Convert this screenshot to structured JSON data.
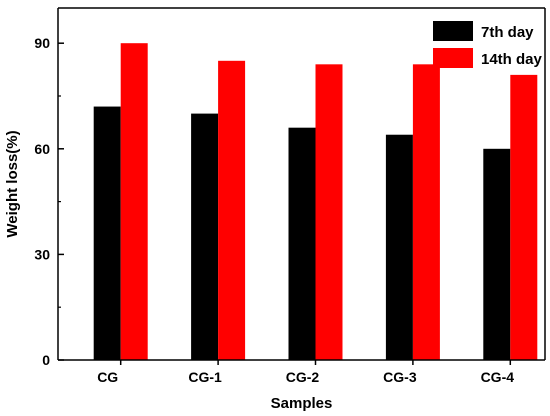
{
  "chart_data": {
    "type": "bar",
    "title": "",
    "xlabel": "Samples",
    "ylabel": "Weight loss(%)",
    "categories": [
      "CG",
      "CG-1",
      "CG-2",
      "CG-3",
      "CG-4"
    ],
    "series": [
      {
        "name": "7th day",
        "values": [
          72,
          70,
          66,
          64,
          60
        ],
        "color": "#000000"
      },
      {
        "name": "14th day",
        "values": [
          90,
          85,
          84,
          84,
          81
        ],
        "color": "#ff0000"
      }
    ],
    "ylim": [
      0,
      100
    ],
    "yticks": [
      0,
      30,
      60,
      90
    ],
    "grid": false,
    "legend_position": "top-right"
  }
}
